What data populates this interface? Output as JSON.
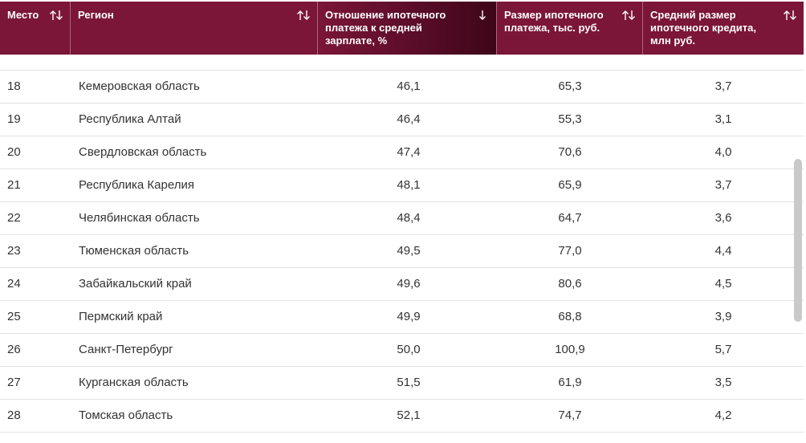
{
  "table": {
    "header": [
      "Место",
      "Регион",
      "Отношение ипотечного платежа к средней зарплате, %",
      "Размер ипотечного платежа, тыс. руб.",
      "Средний размер ипотечного кредита, млн руб."
    ],
    "rows": [
      [
        "18",
        "Кемеровская область",
        "46,1",
        "65,3",
        "3,7"
      ],
      [
        "19",
        "Республика Алтай",
        "46,4",
        "55,3",
        "3,1"
      ],
      [
        "20",
        "Свердловская область",
        "47,4",
        "70,6",
        "4,0"
      ],
      [
        "21",
        "Республика Карелия",
        "48,1",
        "65,9",
        "3,7"
      ],
      [
        "22",
        "Челябинская область",
        "48,4",
        "64,7",
        "3,6"
      ],
      [
        "23",
        "Тюменская область",
        "49,5",
        "77,0",
        "4,4"
      ],
      [
        "24",
        "Забайкальский край",
        "49,6",
        "80,6",
        "4,5"
      ],
      [
        "25",
        "Пермский край",
        "49,9",
        "68,8",
        "3,9"
      ],
      [
        "26",
        "Санкт-Петербург",
        "50,0",
        "100,9",
        "5,7"
      ],
      [
        "27",
        "Курганская область",
        "51,5",
        "61,9",
        "3,5"
      ],
      [
        "28",
        "Томская область",
        "52,1",
        "74,7",
        "4,2"
      ]
    ]
  }
}
